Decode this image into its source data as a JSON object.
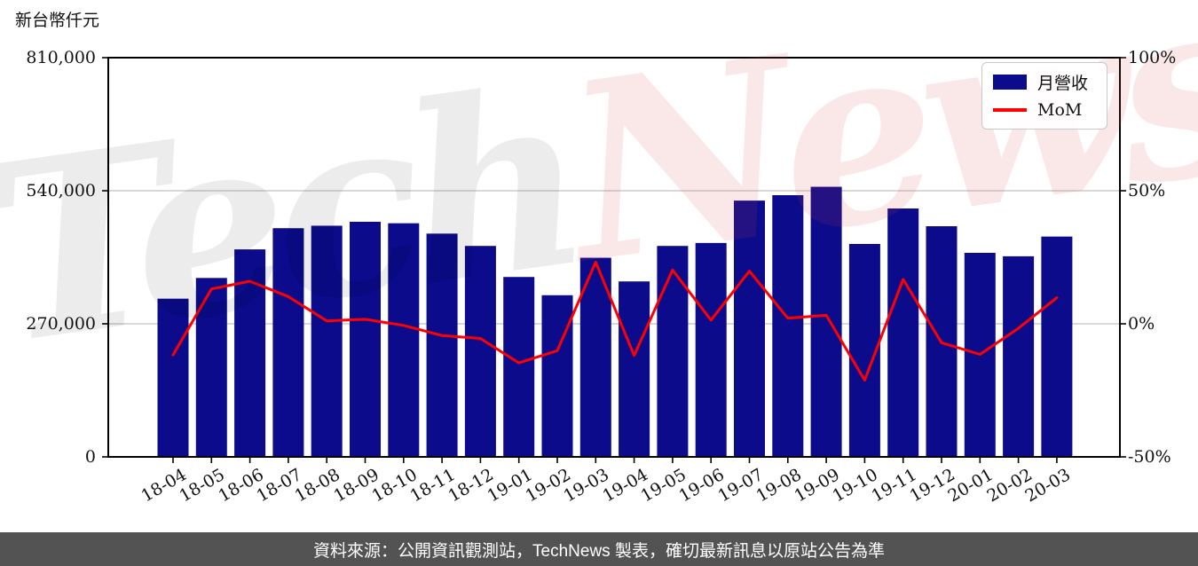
{
  "page": {
    "axis_title_left": "新台幣仟元"
  },
  "watermark": {
    "part1": "Tech",
    "part2": "News"
  },
  "legend": {
    "items": [
      {
        "label": "月營收",
        "type": "bar"
      },
      {
        "label": "MoM",
        "type": "line"
      }
    ]
  },
  "footer": {
    "text": "資料來源：公開資訊觀測站，TechNews 製表，確切最新訊息以原站公告為準"
  },
  "colors": {
    "bar": "#0b0b8b",
    "line": "#ff0000",
    "grid": "#cccccc",
    "spine": "#000000",
    "footer_bg": "#535353",
    "footer_text": "#ffffff"
  },
  "chart_data": {
    "type": "bar+line",
    "title": "新台幣仟元",
    "categories": [
      "18-04",
      "18-05",
      "18-06",
      "18-07",
      "18-08",
      "18-09",
      "18-10",
      "18-11",
      "18-12",
      "19-01",
      "19-02",
      "19-03",
      "19-04",
      "19-05",
      "19-06",
      "19-07",
      "19-08",
      "19-09",
      "19-10",
      "19-11",
      "19-12",
      "20-01",
      "20-02",
      "20-03"
    ],
    "series": [
      {
        "name": "月營收",
        "type": "bar",
        "axis": "left",
        "unit": "新台幣仟元",
        "values": [
          321000,
          363000,
          421000,
          464000,
          469000,
          477000,
          474000,
          453000,
          428000,
          365000,
          328000,
          404000,
          356000,
          428000,
          434000,
          520000,
          531000,
          548000,
          432000,
          504000,
          468000,
          414000,
          407000,
          447000
        ]
      },
      {
        "name": "MoM",
        "type": "line",
        "axis": "right",
        "unit": "%",
        "values": [
          -11.7,
          13.1,
          16.0,
          10.2,
          1.1,
          1.7,
          -0.6,
          -4.4,
          -5.5,
          -14.7,
          -10.1,
          23.2,
          -11.9,
          20.2,
          1.4,
          19.8,
          2.1,
          3.2,
          -21.2,
          16.7,
          -7.1,
          -11.5,
          -1.7,
          9.8
        ]
      }
    ],
    "ylim_left": [
      0,
      810000
    ],
    "ylim_right": [
      -50,
      100
    ],
    "yticks_left": {
      "values": [
        0,
        270000,
        540000,
        810000
      ],
      "labels": [
        "0",
        "270,000",
        "540,000",
        "810,000"
      ]
    },
    "yticks_right": {
      "values": [
        -50,
        0,
        50,
        100
      ],
      "labels": [
        "-50%",
        "0%",
        "50%",
        "100%"
      ]
    },
    "gridlines_left": [
      270000,
      540000
    ],
    "grid": "horizontal",
    "legend_position": "top-right",
    "xlabel": "",
    "ylabel": "新台幣仟元"
  }
}
